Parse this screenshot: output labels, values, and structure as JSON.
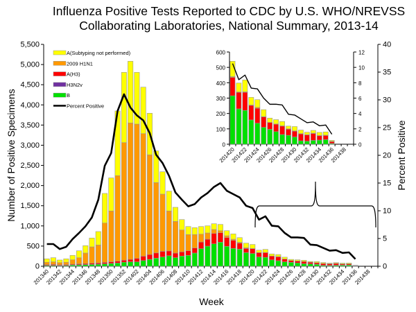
{
  "chart_data": {
    "type": "bar",
    "title_lines": [
      "Influenza Positive Tests Reported to CDC by U.S. WHO/NREVSS",
      "Collaborating Laboratories, National Summary, 2013-14"
    ],
    "xlabel": "Week",
    "ylabel": "Number of Positive Specimens",
    "y2label": "Percent Positive",
    "ylim": [
      0,
      5500
    ],
    "y_ticks": [
      "0",
      "500",
      "1,000",
      "1,500",
      "2,000",
      "2,500",
      "3,000",
      "3,500",
      "4,000",
      "4,500",
      "5,000",
      "5,500"
    ],
    "y2lim": [
      0,
      40
    ],
    "y2_ticks": [
      "0",
      "5",
      "10",
      "15",
      "20",
      "25",
      "30",
      "35",
      "40"
    ],
    "x_tick_labels": [
      "201340",
      "201342",
      "201344",
      "201346",
      "201348",
      "201350",
      "201352",
      "201402",
      "201404",
      "201406",
      "201408",
      "201410",
      "201412",
      "201414",
      "201416",
      "201418",
      "201420",
      "201422",
      "201424",
      "201426",
      "201428",
      "201430",
      "201432",
      "201434",
      "201436",
      "201438"
    ],
    "axis_weeks": 52,
    "categories": [
      "201340",
      "201341",
      "201342",
      "201343",
      "201344",
      "201345",
      "201346",
      "201347",
      "201348",
      "201349",
      "201350",
      "201351",
      "201352",
      "201401",
      "201402",
      "201403",
      "201404",
      "201405",
      "201406",
      "201407",
      "201408",
      "201409",
      "201410",
      "201411",
      "201412",
      "201413",
      "201414",
      "201415",
      "201416",
      "201417",
      "201418",
      "201419",
      "201420",
      "201421",
      "201422",
      "201423",
      "201424",
      "201425",
      "201426",
      "201427",
      "201428",
      "201429",
      "201430",
      "201431",
      "201432",
      "201433",
      "201434",
      "201435",
      "201436"
    ],
    "series": [
      {
        "name": "B",
        "color": "#00e000",
        "values": [
          20,
          20,
          15,
          20,
          30,
          35,
          40,
          45,
          50,
          60,
          70,
          80,
          100,
          110,
          110,
          140,
          170,
          200,
          230,
          260,
          212,
          252,
          269,
          327,
          435,
          498,
          555,
          596,
          493,
          441,
          424,
          338,
          315,
          230,
          220,
          158,
          137,
          110,
          97,
          82,
          63,
          58,
          47,
          22,
          20,
          25,
          27,
          30,
          5
        ]
      },
      {
        "name": "H3N2v",
        "color": "#7030a0",
        "values": [
          0,
          0,
          0,
          0,
          0,
          0,
          0,
          0,
          0,
          0,
          0,
          0,
          0,
          0,
          0,
          0,
          0,
          0,
          0,
          0,
          0,
          0,
          0,
          0,
          0,
          0,
          0,
          0,
          0,
          0,
          0,
          0,
          0,
          0,
          0,
          0,
          0,
          0,
          0,
          0,
          0,
          0,
          0,
          0,
          0,
          0,
          0,
          0,
          0
        ]
      },
      {
        "name": "A(H3)",
        "color": "#ff0000",
        "values": [
          20,
          25,
          20,
          20,
          20,
          25,
          25,
          30,
          30,
          35,
          40,
          45,
          50,
          60,
          85,
          110,
          120,
          130,
          140,
          120,
          115,
          104,
          115,
          125,
          166,
          172,
          258,
          234,
          217,
          200,
          148,
          103,
          120,
          108,
          118,
          95,
          97,
          68,
          45,
          48,
          55,
          40,
          38,
          45,
          40,
          45,
          28,
          27,
          12
        ]
      },
      {
        "name": "2009 H1N1",
        "color": "#ff9900",
        "values": [
          60,
          65,
          55,
          60,
          110,
          152,
          262,
          406,
          447,
          976,
          1260,
          2121,
          2915,
          3383,
          3329,
          3038,
          2472,
          1744,
          1418,
          990,
          785,
          543,
          401,
          333,
          195,
          155,
          98,
          52,
          46,
          29,
          24,
          18,
          5,
          2,
          3,
          2,
          6,
          2,
          0,
          2,
          2,
          2,
          2,
          2,
          2,
          2,
          2,
          2,
          2
        ]
      },
      {
        "name": "A(Subtyping not performed)",
        "color": "#ffff00",
        "values": [
          84,
          102,
          65,
          84,
          109,
          172,
          183,
          219,
          333,
          734,
          820,
          1604,
          1742,
          1529,
          1283,
          1152,
          1031,
          786,
          555,
          492,
          349,
          258,
          200,
          172,
          189,
          177,
          143,
          155,
          126,
          132,
          114,
          113,
          100,
          58,
          77,
          50,
          50,
          45,
          28,
          28,
          28,
          18,
          28,
          23,
          16,
          18,
          20,
          21,
          6
        ]
      }
    ],
    "percent_positive": {
      "name": "Percent Positive",
      "color": "#000000",
      "values": [
        4.0,
        4.0,
        3.1,
        3.5,
        4.9,
        6.0,
        7.2,
        8.8,
        12.0,
        18.1,
        20.4,
        28.0,
        31.0,
        28.6,
        27.2,
        26.3,
        24.0,
        20.1,
        18.6,
        16.3,
        13.3,
        12.0,
        10.8,
        11.2,
        12.4,
        13.2,
        14.3,
        15.0,
        13.6,
        13.0,
        12.4,
        10.9,
        10.5,
        8.4,
        9.0,
        7.3,
        7.2,
        6.0,
        5.2,
        5.2,
        5.1,
        3.9,
        3.8,
        3.3,
        2.8,
        2.9,
        2.4,
        2.5,
        1.3
      ]
    },
    "legend_order": [
      "A(Subtyping not performed)",
      "2009 H1N1",
      "A(H3)",
      "H3N2v",
      "B",
      "Percent Positive"
    ],
    "legend_position": "top-left",
    "inset": {
      "from_week": "201420",
      "ylim": [
        0,
        600
      ],
      "y_ticks": [
        "0",
        "100",
        "200",
        "300",
        "400",
        "500",
        "600"
      ],
      "y2lim": [
        0,
        12
      ],
      "y2_ticks": [
        "0",
        "2",
        "4",
        "6",
        "8",
        "10",
        "12"
      ],
      "x_tick_labels": [
        "201420",
        "201422",
        "201424",
        "201426",
        "201428",
        "201430",
        "201432",
        "201434",
        "201436",
        "201438"
      ],
      "axis_weeks": 20
    }
  }
}
